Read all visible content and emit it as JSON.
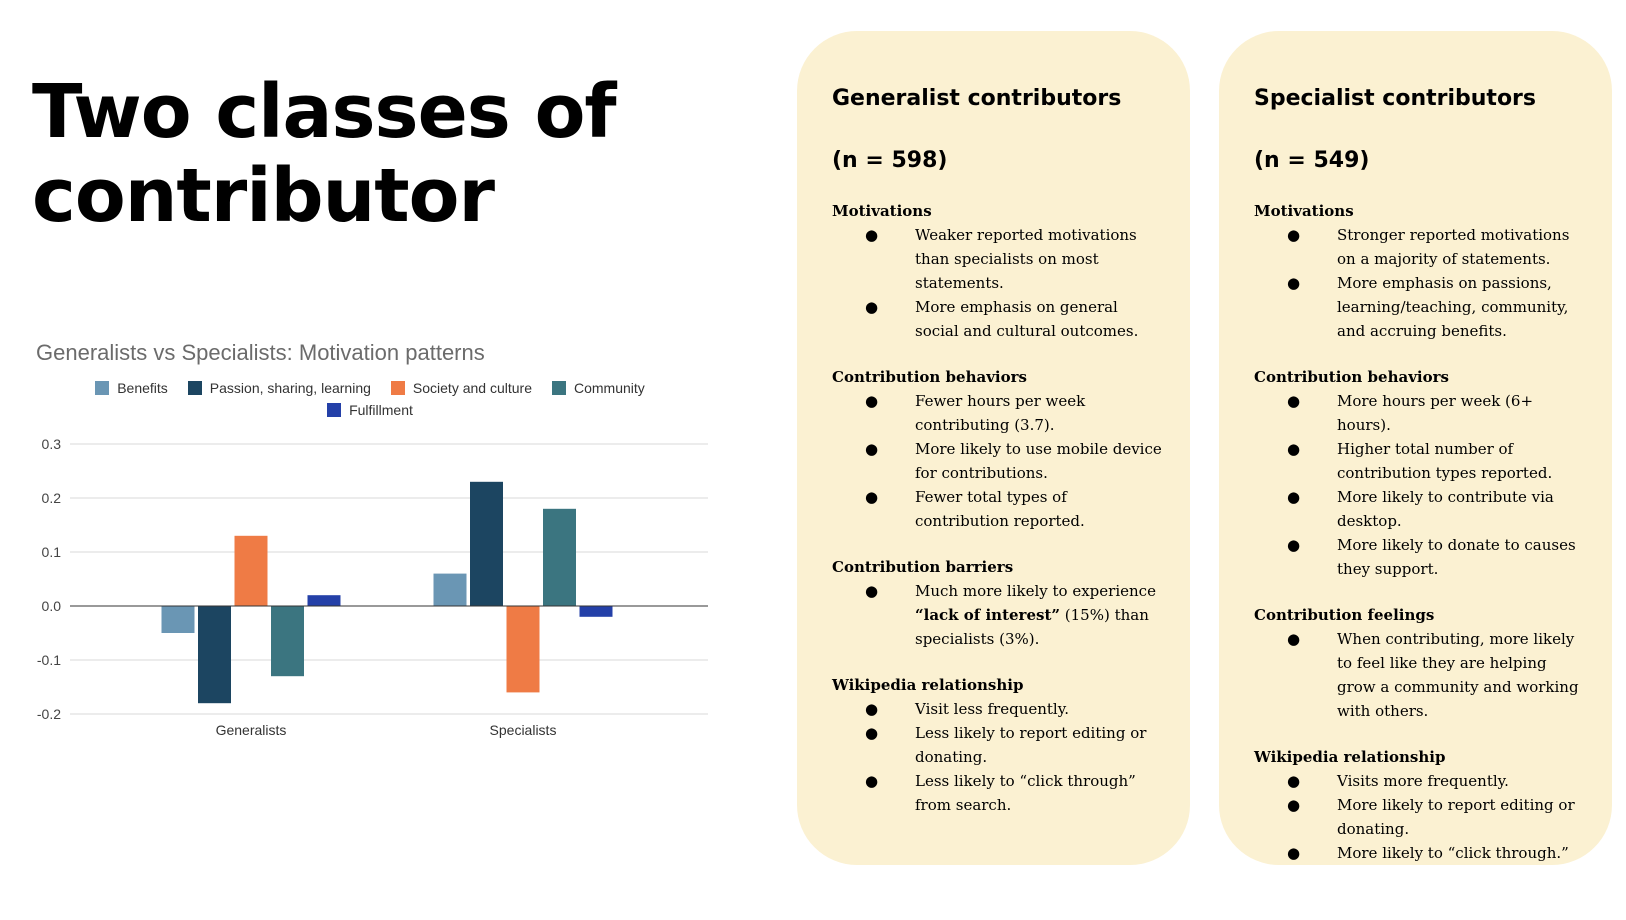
{
  "slide": {
    "title": "Two classes of contributor"
  },
  "chart_data": {
    "type": "bar",
    "title": "Generalists vs Specialists: Motivation patterns",
    "categories": [
      "Generalists",
      "Specialists"
    ],
    "series": [
      {
        "name": "Benefits",
        "color": "#6a96b4",
        "values": [
          -0.05,
          0.06
        ]
      },
      {
        "name": "Passion, sharing, learning",
        "color": "#1c4561",
        "values": [
          -0.18,
          0.23
        ]
      },
      {
        "name": "Society and culture",
        "color": "#ef7b45",
        "values": [
          0.13,
          -0.16
        ]
      },
      {
        "name": "Community",
        "color": "#3b7580",
        "values": [
          -0.13,
          0.18
        ]
      },
      {
        "name": "Fulfillment",
        "color": "#2440a8",
        "values": [
          0.02,
          -0.02
        ]
      }
    ],
    "ylim": [
      -0.2,
      0.3
    ],
    "yticks": [
      0.3,
      0.2,
      0.1,
      0.0,
      -0.1,
      -0.2
    ],
    "ytick_labels": [
      "0.3",
      "0.2",
      "0.1",
      "0.0",
      "-0.1",
      "-0.2"
    ],
    "grid": true,
    "legend_position": "top"
  },
  "cards": [
    {
      "title": "Generalist contributors",
      "n": "(n = 598)",
      "sections": [
        {
          "heading": "Motivations",
          "bullets": [
            "Weaker reported motivations than specialists on most statements.",
            "More emphasis on general social and cultural outcomes."
          ]
        },
        {
          "heading": "Contribution behaviors",
          "bullets": [
            "Fewer hours per week contributing (3.7).",
            "More likely to use mobile device for contributions.",
            "Fewer total types of contribution reported."
          ]
        },
        {
          "heading": "Contribution barriers",
          "bullets": [
            {
              "pre": "Much more likely to experience ",
              "bold": "“lack of interest”",
              "post": " (15%) than specialists (3%)."
            }
          ]
        },
        {
          "heading": "Wikipedia relationship",
          "bullets": [
            "Visit less frequently.",
            "Less likely to report editing or donating.",
            "Less likely to “click through” from search."
          ]
        }
      ]
    },
    {
      "title": "Specialist contributors",
      "n": "(n = 549)",
      "sections": [
        {
          "heading": "Motivations",
          "bullets": [
            "Stronger reported motivations on a majority of statements.",
            "More emphasis on passions, learning/teaching, community, and accruing benefits."
          ]
        },
        {
          "heading": "Contribution behaviors",
          "bullets": [
            "More hours per week (6+ hours).",
            "Higher total number of contribution types reported.",
            "More likely to contribute via desktop.",
            "More likely to donate to causes they support."
          ]
        },
        {
          "heading": "Contribution feelings",
          "bullets": [
            "When contributing, more  likely to feel like they are helping grow a community and working with others."
          ]
        },
        {
          "heading": "Wikipedia relationship",
          "bullets": [
            "Visits more frequently.",
            "More likely to report editing or donating.",
            "More likely to “click through.”"
          ]
        }
      ]
    }
  ]
}
